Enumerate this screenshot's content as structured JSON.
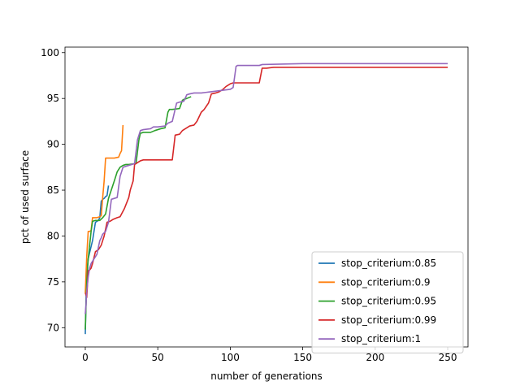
{
  "chart_data": {
    "type": "line",
    "title": "",
    "xlabel": "number of generations",
    "ylabel": "pct of used surface",
    "xlim": [
      -14,
      264
    ],
    "ylim": [
      67.9,
      100.6
    ],
    "xticks": [
      0,
      50,
      100,
      150,
      200,
      250
    ],
    "yticks": [
      70,
      75,
      80,
      85,
      90,
      95,
      100
    ],
    "grid": false,
    "legend_position": "lower-right",
    "series": [
      {
        "name": "stop_criterium:0.85",
        "color": "#1f77b4",
        "x": [
          0,
          0.5,
          1,
          2,
          3,
          5,
          7,
          9,
          10,
          11,
          12,
          13,
          14,
          15,
          16
        ],
        "y": [
          69.3,
          73.0,
          76.0,
          77.5,
          78.2,
          79.5,
          81.5,
          81.7,
          82.0,
          83.8,
          84.0,
          84.1,
          84.3,
          84.4,
          85.5
        ]
      },
      {
        "name": "stop_criterium:0.9",
        "color": "#ff7f0e",
        "x": [
          0,
          1,
          2,
          3,
          4,
          5,
          8,
          10,
          11,
          12,
          13,
          14,
          20,
          23,
          24,
          25,
          26
        ],
        "y": [
          73.8,
          77.8,
          80.5,
          80.5,
          80.6,
          82.0,
          82.0,
          82.1,
          82.2,
          84.2,
          86.0,
          88.5,
          88.5,
          88.6,
          89.0,
          89.3,
          92.1
        ]
      },
      {
        "name": "stop_criterium:0.95",
        "color": "#2ca02c",
        "x": [
          0,
          1,
          2,
          3,
          4,
          5,
          7,
          10,
          12,
          14,
          16,
          20,
          22,
          24,
          26,
          28,
          30,
          35,
          37,
          38,
          40,
          45,
          48,
          52,
          55,
          57,
          58,
          60,
          65,
          67,
          68,
          70,
          73
        ],
        "y": [
          69.8,
          75.0,
          77.5,
          79.0,
          80.5,
          81.6,
          81.7,
          81.7,
          82.0,
          82.4,
          84.1,
          86.0,
          87.0,
          87.5,
          87.7,
          87.8,
          87.8,
          87.9,
          90.5,
          91.2,
          91.3,
          91.3,
          91.5,
          91.7,
          91.8,
          93.5,
          93.8,
          93.8,
          93.9,
          94.8,
          94.9,
          95.0,
          95.2
        ]
      },
      {
        "name": "stop_criterium:0.99",
        "color": "#d62728",
        "x": [
          0,
          1,
          2,
          3,
          4,
          5,
          7,
          9,
          11,
          13,
          15,
          17,
          19,
          22,
          24,
          27,
          29,
          30,
          31,
          32,
          33,
          34,
          36,
          38,
          40,
          45,
          50,
          55,
          60,
          62,
          65,
          67,
          70,
          72,
          75,
          77,
          80,
          82,
          85,
          87,
          90,
          92,
          95,
          97,
          100,
          102,
          105,
          110,
          115,
          120,
          122,
          125,
          130,
          150,
          200,
          250
        ],
        "y": [
          73.8,
          73.3,
          76.2,
          76.3,
          76.5,
          77.0,
          78.3,
          78.5,
          79.0,
          80.0,
          81.5,
          81.6,
          81.8,
          82.0,
          82.1,
          83.0,
          83.8,
          84.2,
          85.0,
          85.5,
          86.0,
          87.8,
          88.0,
          88.2,
          88.3,
          88.3,
          88.3,
          88.3,
          88.3,
          91.0,
          91.1,
          91.5,
          91.8,
          92.0,
          92.1,
          92.5,
          93.5,
          93.8,
          94.5,
          95.5,
          95.6,
          95.7,
          96.0,
          96.3,
          96.6,
          96.7,
          96.7,
          96.7,
          96.7,
          96.7,
          98.3,
          98.3,
          98.4,
          98.4,
          98.4,
          98.4
        ]
      },
      {
        "name": "stop_criterium:1",
        "color": "#9467bd",
        "x": [
          0,
          0.5,
          1,
          2,
          3,
          4,
          6,
          8,
          10,
          11,
          12,
          14,
          16,
          18,
          20,
          22,
          24,
          26,
          28,
          30,
          32,
          34,
          36,
          38,
          40,
          45,
          47,
          50,
          55,
          57,
          60,
          63,
          65,
          68,
          70,
          72,
          75,
          80,
          85,
          90,
          95,
          100,
          102,
          104,
          105,
          110,
          115,
          120,
          122,
          150,
          200,
          250
        ],
        "y": [
          71.5,
          72.5,
          74.0,
          75.5,
          76.5,
          77.0,
          77.5,
          78.0,
          79.5,
          79.8,
          80.2,
          80.5,
          81.5,
          84.0,
          84.1,
          84.2,
          86.5,
          87.5,
          87.6,
          87.7,
          87.8,
          87.9,
          90.5,
          91.5,
          91.6,
          91.7,
          91.9,
          91.9,
          92.0,
          92.3,
          92.5,
          94.5,
          94.6,
          94.7,
          95.4,
          95.5,
          95.6,
          95.6,
          95.7,
          95.8,
          95.9,
          96.0,
          96.2,
          98.5,
          98.6,
          98.6,
          98.6,
          98.6,
          98.7,
          98.8,
          98.8,
          98.8
        ]
      }
    ]
  }
}
